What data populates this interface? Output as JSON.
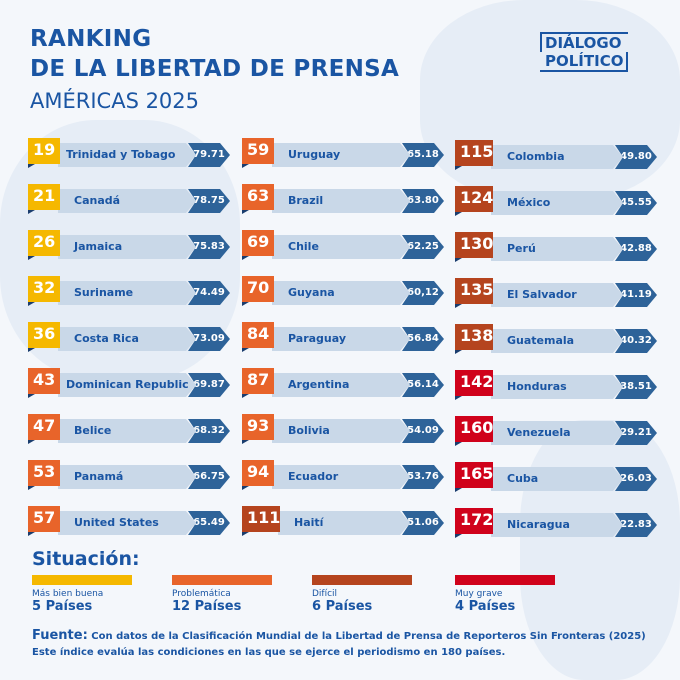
{
  "header": {
    "title_line1": "RANKING",
    "title_line2": "DE LA LIBERTAD DE PRENSA",
    "subtitle": "AMÉRICAS 2025",
    "logo_line1": "DIÁLOGO",
    "logo_line2": "POLÍTICO"
  },
  "colors": {
    "Más bien buena": "#f5b800",
    "Problemática": "#e8642a",
    "Difícil": "#b5441e",
    "Muy grave": "#d0021b",
    "bar": "#c9d8e8",
    "value": "#2e6399",
    "text": "#1a55a3"
  },
  "chart_data": {
    "type": "table",
    "columns": [
      "rank",
      "country",
      "score",
      "situation"
    ],
    "rows": [
      [
        19,
        "Trinidad y Tobago",
        "79.71",
        "Más bien buena"
      ],
      [
        21,
        "Canadá",
        "78.75",
        "Más bien buena"
      ],
      [
        26,
        "Jamaica",
        "75.83",
        "Más bien buena"
      ],
      [
        32,
        "Suriname",
        "74.49",
        "Más bien buena"
      ],
      [
        36,
        "Costa Rica",
        "73.09",
        "Más bien buena"
      ],
      [
        43,
        "Dominican Republic",
        "69.87",
        "Problemática"
      ],
      [
        47,
        "Belice",
        "68.32",
        "Problemática"
      ],
      [
        53,
        "Panamá",
        "66.75",
        "Problemática"
      ],
      [
        57,
        "United States",
        "65.49",
        "Problemática"
      ],
      [
        59,
        "Uruguay",
        "65.18",
        "Problemática"
      ],
      [
        63,
        "Brazil",
        "63.80",
        "Problemática"
      ],
      [
        69,
        "Chile",
        "62.25",
        "Problemática"
      ],
      [
        70,
        "Guyana",
        "60,12",
        "Problemática"
      ],
      [
        84,
        "Paraguay",
        "56.84",
        "Problemática"
      ],
      [
        87,
        "Argentina",
        "56.14",
        "Problemática"
      ],
      [
        93,
        "Bolivia",
        "54.09",
        "Problemática"
      ],
      [
        94,
        "Ecuador",
        "53.76",
        "Problemática"
      ],
      [
        111,
        "Haití",
        "51.06",
        "Difícil"
      ],
      [
        115,
        "Colombia",
        "49.80",
        "Difícil"
      ],
      [
        124,
        "México",
        "45.55",
        "Difícil"
      ],
      [
        130,
        "Perú",
        "42.88",
        "Difícil"
      ],
      [
        135,
        "El Salvador",
        "41.19",
        "Difícil"
      ],
      [
        138,
        "Guatemala",
        "40.32",
        "Difícil"
      ],
      [
        142,
        "Honduras",
        "38.51",
        "Muy grave"
      ],
      [
        160,
        "Venezuela",
        "29.21",
        "Muy grave"
      ],
      [
        165,
        "Cuba",
        "26.03",
        "Muy grave"
      ],
      [
        172,
        "Nicaragua",
        "22.83",
        "Muy grave"
      ]
    ]
  },
  "legend": {
    "title": "Situación:",
    "items": [
      {
        "label": "Más bien buena",
        "count": "5 Países"
      },
      {
        "label": "Problemática",
        "count": "12 Países"
      },
      {
        "label": "Difícil",
        "count": "6 Países"
      },
      {
        "label": "Muy grave",
        "count": "4 Países"
      }
    ]
  },
  "source": {
    "label": "Fuente:",
    "text": "Con datos de la Clasificación Mundial de la Libertad de Prensa de Reporteros Sin Fronteras (2025)",
    "note": "Este índice evalúa las condiciones en las que se ejerce el periodismo en 180 países."
  }
}
